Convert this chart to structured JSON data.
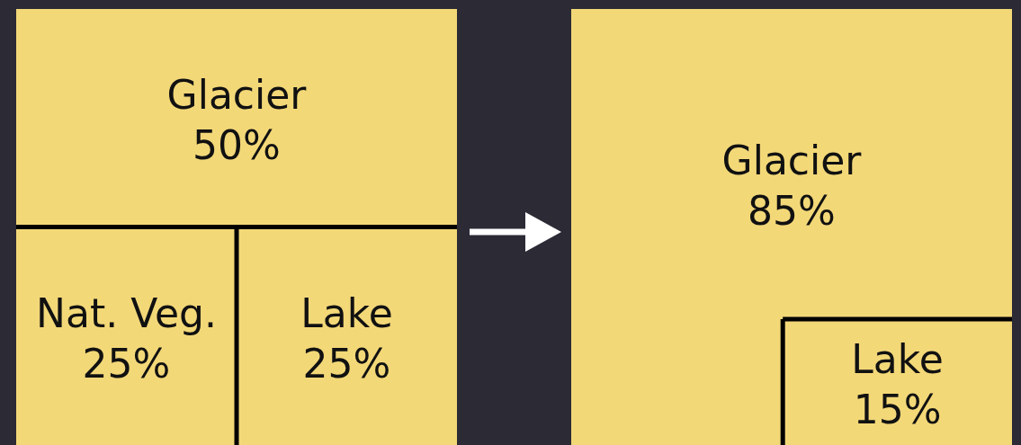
{
  "chart_data": [
    {
      "type": "other",
      "categories": [
        "Glacier",
        "Nat. Veg.",
        "Lake"
      ],
      "values": [
        50,
        25,
        25
      ],
      "value_labels": [
        "50%",
        "25%",
        "25%"
      ],
      "colors": [
        "#f3d878",
        "#f3d878",
        "#f3d878"
      ]
    },
    {
      "type": "other",
      "categories": [
        "Glacier",
        "Lake"
      ],
      "values": [
        85,
        15
      ],
      "value_labels": [
        "85%",
        "15%"
      ],
      "colors": [
        "#f3d878",
        "#f3d878"
      ]
    }
  ]
}
